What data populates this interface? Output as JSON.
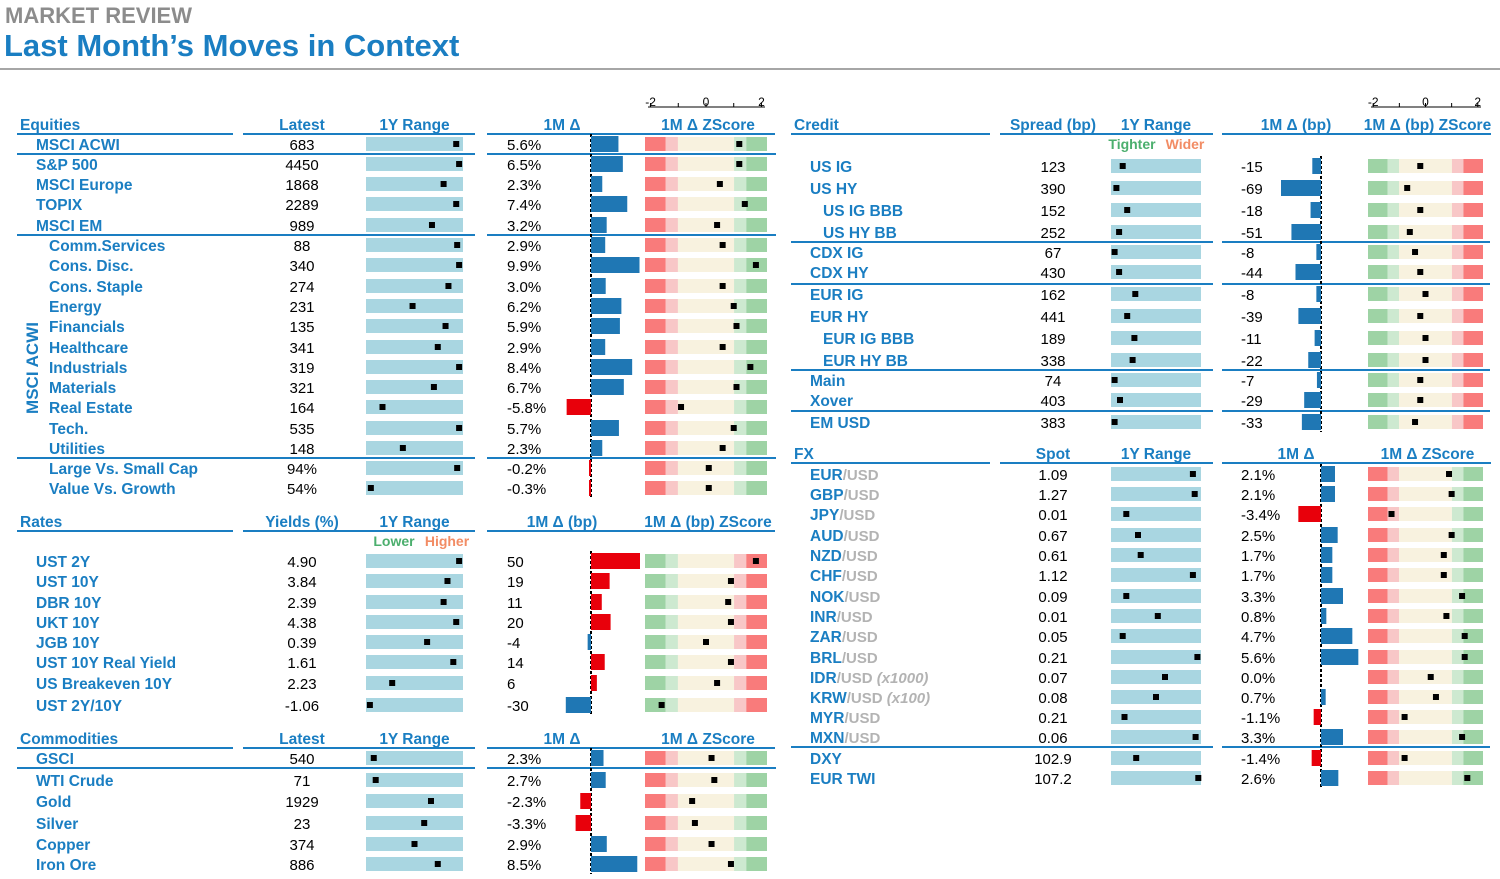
{
  "header": {
    "kicker": "MARKET REVIEW",
    "title": "Last Month’s Moves in Context"
  },
  "colors": {
    "accent": "#1a7ec2",
    "range_bar": "#a9d6e1",
    "positive_bar": "#1f77b4",
    "negative_bar": "#e8000b",
    "zscore_red": "#f97b7b",
    "zscore_pink": "#f8c7c7",
    "zscore_cream": "#f8f2df",
    "zscore_green": "#9ed3a5"
  },
  "axis_ticks": [
    "-2",
    "0",
    "2"
  ],
  "chart_data": [
    {
      "type": "table",
      "section": "Equities",
      "columns": {
        "name": "Equities",
        "latest": "Latest",
        "range": "1Y Range",
        "change": "1M Δ",
        "zscore": "1M Δ ZScore"
      },
      "group_label": "MSCI ACWI",
      "rows": [
        {
          "name": "MSCI ACWI",
          "latest": "683",
          "range": 0.93,
          "change": "5.6%",
          "change_value": 5.6,
          "zscore": 1.2
        },
        {
          "name": "S&P 500",
          "latest": "4450",
          "range": 0.96,
          "change": "6.5%",
          "change_value": 6.5,
          "zscore": 1.2
        },
        {
          "name": "MSCI Europe",
          "latest": "1868",
          "range": 0.8,
          "change": "2.3%",
          "change_value": 2.3,
          "zscore": 0.5
        },
        {
          "name": "TOPIX",
          "latest": "2289",
          "range": 0.93,
          "change": "7.4%",
          "change_value": 7.4,
          "zscore": 1.4
        },
        {
          "name": "MSCI EM",
          "latest": "989",
          "range": 0.68,
          "change": "3.2%",
          "change_value": 3.2,
          "zscore": 0.4
        },
        {
          "name": "Comm.Services",
          "latest": "88",
          "range": 0.94,
          "change": "2.9%",
          "change_value": 2.9,
          "zscore": 0.6
        },
        {
          "name": "Cons. Disc.",
          "latest": "340",
          "range": 0.96,
          "change": "9.9%",
          "change_value": 9.9,
          "zscore": 1.8
        },
        {
          "name": "Cons. Staple",
          "latest": "274",
          "range": 0.85,
          "change": "3.0%",
          "change_value": 3.0,
          "zscore": 0.6
        },
        {
          "name": "Energy",
          "latest": "231",
          "range": 0.48,
          "change": "6.2%",
          "change_value": 6.2,
          "zscore": 1.0
        },
        {
          "name": "Financials",
          "latest": "135",
          "range": 0.82,
          "change": "5.9%",
          "change_value": 5.9,
          "zscore": 1.1
        },
        {
          "name": "Healthcare",
          "latest": "341",
          "range": 0.74,
          "change": "2.9%",
          "change_value": 2.9,
          "zscore": 0.6
        },
        {
          "name": "Industrials",
          "latest": "319",
          "range": 0.96,
          "change": "8.4%",
          "change_value": 8.4,
          "zscore": 1.6
        },
        {
          "name": "Materials",
          "latest": "321",
          "range": 0.7,
          "change": "6.7%",
          "change_value": 6.7,
          "zscore": 1.1
        },
        {
          "name": "Real Estate",
          "latest": "164",
          "range": 0.17,
          "change": "-5.8%",
          "change_value": -5.8,
          "zscore": -0.9
        },
        {
          "name": "Tech.",
          "latest": "535",
          "range": 0.96,
          "change": "5.7%",
          "change_value": 5.7,
          "zscore": 1.0
        },
        {
          "name": "Utilities",
          "latest": "148",
          "range": 0.38,
          "change": "2.3%",
          "change_value": 2.3,
          "zscore": 0.6
        },
        {
          "name": "Large Vs. Small Cap",
          "latest": "94%",
          "range": 0.94,
          "change": "-0.2%",
          "change_value": -0.2,
          "zscore": 0.1
        },
        {
          "name": "Value Vs. Growth",
          "latest": "54%",
          "range": 0.05,
          "change": "-0.3%",
          "change_value": -0.3,
          "zscore": 0.1
        }
      ]
    },
    {
      "type": "table",
      "section": "Rates",
      "columns": {
        "name": "Rates",
        "latest": "Yields (%)",
        "range": "1Y Range",
        "change": "1M Δ (bp)",
        "zscore": "1M Δ (bp) ZScore"
      },
      "range_legend": {
        "low": "Lower",
        "high": "Higher"
      },
      "rows": [
        {
          "name": "UST 2Y",
          "latest": "4.90",
          "range": 0.96,
          "change": "50",
          "change_value": 50,
          "zscore": 1.8
        },
        {
          "name": "UST 10Y",
          "latest": "3.84",
          "range": 0.84,
          "change": "19",
          "change_value": 19,
          "zscore": 0.9
        },
        {
          "name": "DBR 10Y",
          "latest": "2.39",
          "range": 0.8,
          "change": "11",
          "change_value": 11,
          "zscore": 0.8
        },
        {
          "name": "UKT 10Y",
          "latest": "4.38",
          "range": 0.93,
          "change": "20",
          "change_value": 20,
          "zscore": 0.9
        },
        {
          "name": "JGB 10Y",
          "latest": "0.39",
          "range": 0.63,
          "change": "-4",
          "change_value": -4,
          "zscore": 0.0
        },
        {
          "name": "UST 10Y Real Yield",
          "latest": "1.61",
          "range": 0.9,
          "change": "14",
          "change_value": 14,
          "zscore": 0.9
        },
        {
          "name": "US Breakeven 10Y",
          "latest": "2.23",
          "range": 0.27,
          "change": "6",
          "change_value": 6,
          "zscore": 0.4
        },
        {
          "name": "UST 2Y/10Y",
          "latest": "-1.06",
          "range": 0.04,
          "change": "-30",
          "change_value": -30,
          "zscore": -1.6
        }
      ]
    },
    {
      "type": "table",
      "section": "Commodities",
      "columns": {
        "name": "Commodities",
        "latest": "Latest",
        "range": "1Y Range",
        "change": "1M Δ",
        "zscore": "1M Δ ZScore"
      },
      "rows": [
        {
          "name": "GSCI",
          "latest": "540",
          "range": 0.08,
          "change": "2.3%",
          "change_value": 2.3,
          "zscore": 0.2
        },
        {
          "name": "WTI Crude",
          "latest": "71",
          "range": 0.1,
          "change": "2.7%",
          "change_value": 2.7,
          "zscore": 0.3
        },
        {
          "name": "Gold",
          "latest": "1929",
          "range": 0.67,
          "change": "-2.3%",
          "change_value": -2.3,
          "zscore": -0.5
        },
        {
          "name": "Silver",
          "latest": "23",
          "range": 0.6,
          "change": "-3.3%",
          "change_value": -3.3,
          "zscore": -0.4
        },
        {
          "name": "Copper",
          "latest": "374",
          "range": 0.5,
          "change": "2.9%",
          "change_value": 2.9,
          "zscore": 0.2
        },
        {
          "name": "Iron Ore",
          "latest": "886",
          "range": 0.74,
          "change": "8.5%",
          "change_value": 8.5,
          "zscore": 0.9
        }
      ]
    },
    {
      "type": "table",
      "section": "Credit",
      "columns": {
        "name": "Credit",
        "latest": "Spread (bp)",
        "range": "1Y Range",
        "change": "1M Δ (bp)",
        "zscore": "1M Δ (bp) ZScore"
      },
      "range_legend": {
        "low": "Tighter",
        "high": "Wider"
      },
      "rows": [
        {
          "name": "US IG",
          "latest": "123",
          "range": 0.13,
          "change": "-15",
          "change_value": -15,
          "zscore": -0.2
        },
        {
          "name": "US HY",
          "latest": "390",
          "range": 0.06,
          "change": "-69",
          "change_value": -69,
          "zscore": -0.7
        },
        {
          "name": "US IG BBB",
          "latest": "152",
          "range": 0.18,
          "change": "-18",
          "change_value": -18,
          "zscore": -0.2
        },
        {
          "name": "US HY BB",
          "latest": "252",
          "range": 0.09,
          "change": "-51",
          "change_value": -51,
          "zscore": -0.6
        },
        {
          "name": "CDX IG",
          "latest": "67",
          "range": 0.04,
          "change": "-8",
          "change_value": -8,
          "zscore": -0.4
        },
        {
          "name": "CDX HY",
          "latest": "430",
          "range": 0.09,
          "change": "-44",
          "change_value": -44,
          "zscore": -0.2
        },
        {
          "name": "EUR IG",
          "latest": "162",
          "range": 0.27,
          "change": "-8",
          "change_value": -8,
          "zscore": 0.0
        },
        {
          "name": "EUR HY",
          "latest": "441",
          "range": 0.18,
          "change": "-39",
          "change_value": -39,
          "zscore": -0.2
        },
        {
          "name": "EUR IG BBB",
          "latest": "189",
          "range": 0.26,
          "change": "-11",
          "change_value": -11,
          "zscore": 0.0
        },
        {
          "name": "EUR HY BB",
          "latest": "338",
          "range": 0.24,
          "change": "-22",
          "change_value": -22,
          "zscore": 0.0
        },
        {
          "name": "Main",
          "latest": "74",
          "range": 0.04,
          "change": "-7",
          "change_value": -7,
          "zscore": -0.2
        },
        {
          "name": "Xover",
          "latest": "403",
          "range": 0.1,
          "change": "-29",
          "change_value": -29,
          "zscore": -0.2
        },
        {
          "name": "EM USD",
          "latest": "383",
          "range": 0.04,
          "change": "-33",
          "change_value": -33,
          "zscore": -0.4
        }
      ]
    },
    {
      "type": "table",
      "section": "FX",
      "columns": {
        "name": "FX",
        "latest": "Spot",
        "range": "1Y Range",
        "change": "1M Δ",
        "zscore": "1M Δ ZScore"
      },
      "rows": [
        {
          "name": "EUR",
          "quote": "/USD",
          "latest": "1.09",
          "range": 0.91,
          "change": "2.1%",
          "change_value": 2.1,
          "zscore": 0.9
        },
        {
          "name": "GBP",
          "quote": "/USD",
          "latest": "1.27",
          "range": 0.93,
          "change": "2.1%",
          "change_value": 2.1,
          "zscore": 1.0
        },
        {
          "name": "JPY",
          "quote": "/USD",
          "latest": "0.01",
          "range": 0.17,
          "change": "-3.4%",
          "change_value": -3.4,
          "zscore": -1.3
        },
        {
          "name": "AUD",
          "quote": "/USD",
          "latest": "0.67",
          "range": 0.3,
          "change": "2.5%",
          "change_value": 2.5,
          "zscore": 1.0
        },
        {
          "name": "NZD",
          "quote": "/USD",
          "latest": "0.61",
          "range": 0.33,
          "change": "1.7%",
          "change_value": 1.7,
          "zscore": 0.7
        },
        {
          "name": "CHF",
          "quote": "/USD",
          "latest": "1.12",
          "range": 0.91,
          "change": "1.7%",
          "change_value": 1.7,
          "zscore": 0.7
        },
        {
          "name": "NOK",
          "quote": "/USD",
          "latest": "0.09",
          "range": 0.17,
          "change": "3.3%",
          "change_value": 3.3,
          "zscore": 1.4
        },
        {
          "name": "INR",
          "quote": "/USD",
          "latest": "0.01",
          "range": 0.52,
          "change": "0.8%",
          "change_value": 0.8,
          "zscore": 0.8
        },
        {
          "name": "ZAR",
          "quote": "/USD",
          "latest": "0.05",
          "range": 0.13,
          "change": "4.7%",
          "change_value": 4.7,
          "zscore": 1.5
        },
        {
          "name": "BRL",
          "quote": "/USD",
          "latest": "0.21",
          "range": 0.96,
          "change": "5.6%",
          "change_value": 5.6,
          "zscore": 1.5
        },
        {
          "name": "IDR",
          "quote": "/USD",
          "note": "(x1000)",
          "latest": "0.07",
          "range": 0.6,
          "change": "0.0%",
          "change_value": 0.0,
          "zscore": 0.2
        },
        {
          "name": "KRW",
          "quote": "/USD",
          "note": "(x100)",
          "latest": "0.08",
          "range": 0.5,
          "change": "0.7%",
          "change_value": 0.7,
          "zscore": 0.4
        },
        {
          "name": "MYR",
          "quote": "/USD",
          "latest": "0.21",
          "range": 0.15,
          "change": "-1.1%",
          "change_value": -1.1,
          "zscore": -0.8
        },
        {
          "name": "MXN",
          "quote": "/USD",
          "latest": "0.06",
          "range": 0.94,
          "change": "3.3%",
          "change_value": 3.3,
          "zscore": 1.4
        },
        {
          "name": "DXY",
          "latest": "102.9",
          "range": 0.28,
          "change": "-1.4%",
          "change_value": -1.4,
          "zscore": -0.8
        },
        {
          "name": "EUR TWI",
          "latest": "107.2",
          "range": 0.97,
          "change": "2.6%",
          "change_value": 2.6,
          "zscore": 1.6
        }
      ]
    }
  ]
}
